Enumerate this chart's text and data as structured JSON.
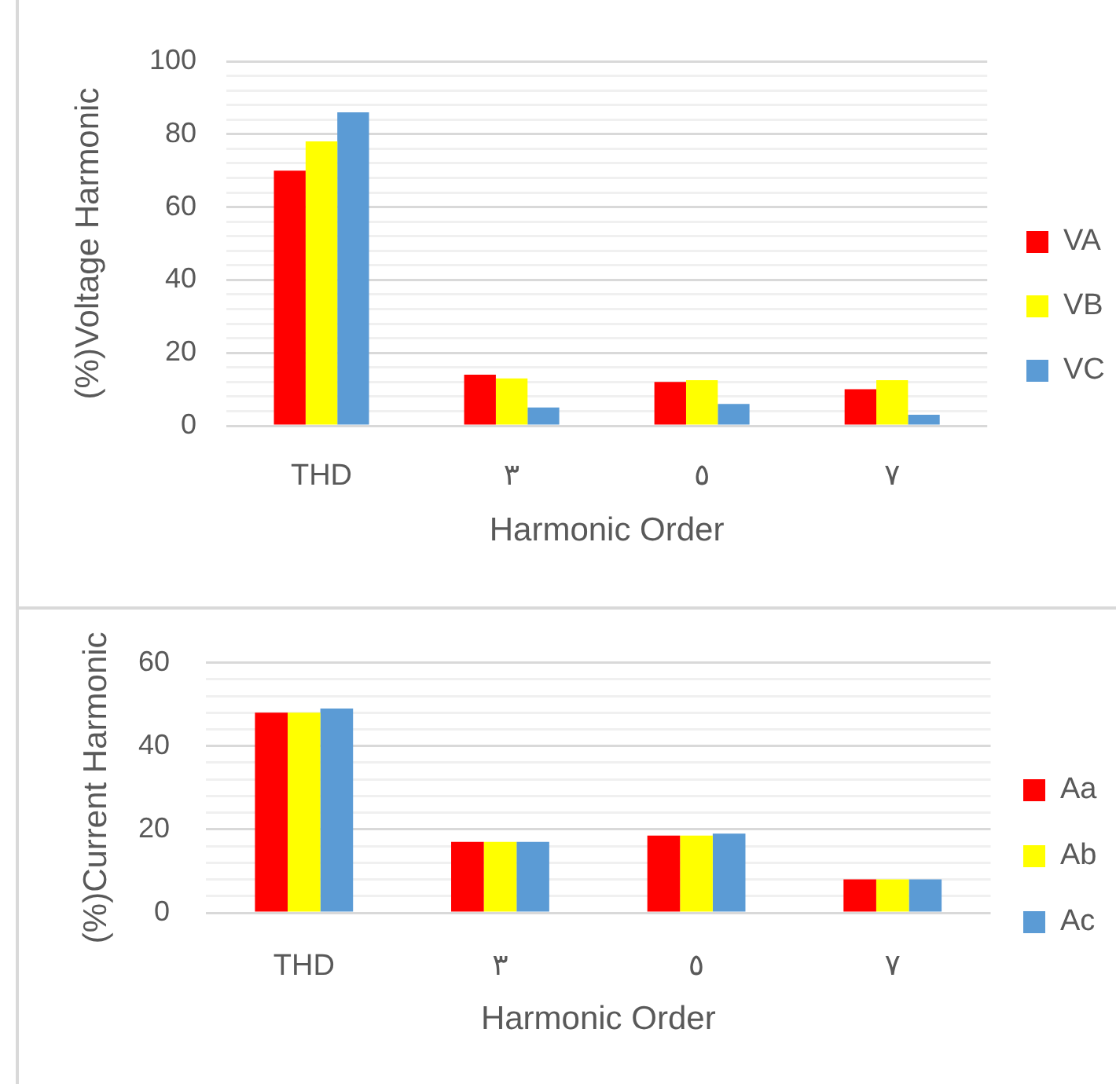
{
  "chart_data": [
    {
      "type": "bar",
      "xlabel": "Harmonic Order",
      "ylabel": "(%)Voltage Harmonic",
      "categories": [
        "THD",
        "٣",
        "٥",
        "٧"
      ],
      "series": [
        {
          "name": "VA",
          "color": "#ff0000",
          "values": [
            70,
            14,
            12,
            10
          ]
        },
        {
          "name": "VB",
          "color": "#ffff00",
          "values": [
            78,
            13,
            12.5,
            12.5
          ]
        },
        {
          "name": "VC",
          "color": "#5b9bd5",
          "values": [
            86,
            5,
            6,
            3
          ]
        }
      ],
      "ylim": [
        0,
        100
      ],
      "yticks": [
        0,
        {
          "value": 4,
          "label": null
        },
        {
          "value": 8,
          "label": null
        },
        {
          "value": 12,
          "label": null
        },
        {
          "value": 16,
          "label": null
        },
        20,
        {
          "value": 24,
          "label": null
        },
        {
          "value": 28,
          "label": null
        },
        {
          "value": 32,
          "label": null
        },
        {
          "value": 36,
          "label": null
        },
        40,
        {
          "value": 44,
          "label": null
        },
        {
          "value": 48,
          "label": null
        },
        {
          "value": 52,
          "label": null
        },
        {
          "value": 56,
          "label": null
        },
        60,
        {
          "value": 64,
          "label": null
        },
        {
          "value": 68,
          "label": null
        },
        {
          "value": 72,
          "label": null
        },
        {
          "value": 76,
          "label": null
        },
        80,
        {
          "value": 84,
          "label": null
        },
        {
          "value": 88,
          "label": null
        },
        {
          "value": 92,
          "label": null
        },
        {
          "value": 96,
          "label": null
        },
        100
      ],
      "grid": "y",
      "legend": "right"
    },
    {
      "type": "bar",
      "xlabel": "Harmonic Order",
      "ylabel": "(%)Current Harmonic",
      "categories": [
        "THD",
        "٣",
        "٥",
        "٧"
      ],
      "series": [
        {
          "name": "Aa",
          "color": "#ff0000",
          "values": [
            48,
            17,
            18.5,
            8
          ]
        },
        {
          "name": "Ab",
          "color": "#ffff00",
          "values": [
            48,
            17,
            18.5,
            8
          ]
        },
        {
          "name": "Ac",
          "color": "#5b9bd5",
          "values": [
            49,
            17,
            19,
            8
          ]
        }
      ],
      "ylim": [
        0,
        60
      ],
      "yticks": [
        0,
        {
          "value": 4,
          "label": null
        },
        {
          "value": 8,
          "label": null
        },
        {
          "value": 12,
          "label": null
        },
        {
          "value": 16,
          "label": null
        },
        20,
        {
          "value": 24,
          "label": null
        },
        {
          "value": 28,
          "label": null
        },
        {
          "value": 32,
          "label": null
        },
        {
          "value": 36,
          "label": null
        },
        40,
        {
          "value": 44,
          "label": null
        },
        {
          "value": 48,
          "label": null
        },
        {
          "value": 52,
          "label": null
        },
        {
          "value": 56,
          "label": null
        },
        60
      ],
      "grid": "y",
      "legend": "right"
    }
  ]
}
